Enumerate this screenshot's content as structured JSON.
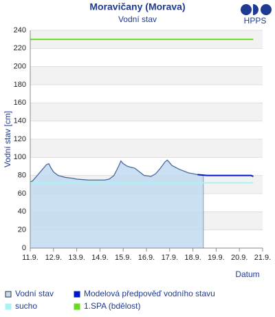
{
  "logo": "HPPS",
  "chart_data": {
    "type": "line",
    "title": "Moravičany (Morava)",
    "subtitle": "Vodní stav",
    "y_label": "Vodní stav [cm]",
    "x_label": "Datum",
    "xlim": [
      11,
      21
    ],
    "xticks": [
      {
        "value": 11,
        "label": "11.9."
      },
      {
        "value": 12,
        "label": "12.9."
      },
      {
        "value": 13,
        "label": "13.9."
      },
      {
        "value": 14,
        "label": "14.9."
      },
      {
        "value": 15,
        "label": "15.9."
      },
      {
        "value": 16,
        "label": "16.9."
      },
      {
        "value": 17,
        "label": "17.9."
      },
      {
        "value": 18,
        "label": "18.9."
      },
      {
        "value": 19,
        "label": "19.9."
      },
      {
        "value": 20,
        "label": "20.9."
      },
      {
        "value": 21,
        "label": "21.9."
      }
    ],
    "ylim": [
      0,
      240
    ],
    "yticks": [
      0,
      20,
      40,
      60,
      80,
      100,
      120,
      140,
      160,
      180,
      200,
      220,
      240
    ],
    "grid": true,
    "series": [
      {
        "name": "Vodní stav",
        "color": "#6a8bb8",
        "fill": "#c3dbf2",
        "area": true,
        "x": [
          11,
          11.1,
          11.3,
          11.5,
          11.7,
          11.8,
          11.9,
          12.0,
          12.2,
          12.5,
          12.8,
          13.0,
          13.5,
          14.0,
          14.2,
          14.4,
          14.6,
          14.8,
          14.9,
          15.0,
          15.2,
          15.5,
          15.7,
          15.9,
          16.2,
          16.4,
          16.6,
          16.8,
          16.9,
          17.1,
          17.4,
          17.8,
          18.0,
          18.2,
          18.45
        ],
        "values": [
          73,
          74,
          80,
          86,
          92,
          93,
          88,
          84,
          80,
          78,
          77,
          76,
          75,
          75,
          75,
          76,
          80,
          90,
          96,
          93,
          90,
          88,
          84,
          80,
          79,
          82,
          88,
          95,
          97,
          91,
          87,
          83,
          82,
          81,
          80
        ]
      },
      {
        "name": "Modelová předpověď vodního stavu",
        "color": "#0018c8",
        "area": false,
        "x": [
          18.2,
          18.6,
          19.0,
          19.5,
          20.0,
          20.5,
          20.6
        ],
        "values": [
          81,
          80,
          80,
          80,
          80,
          80,
          79
        ]
      },
      {
        "name": "sucho",
        "color": "#a8f4f4",
        "area": false,
        "x": [
          11,
          20.6
        ],
        "values": [
          72,
          72
        ]
      },
      {
        "name": "1.SPA (bdělost)",
        "color": "#66dd22",
        "area": false,
        "x": [
          11,
          20.6
        ],
        "values": [
          230,
          230
        ]
      }
    ]
  }
}
